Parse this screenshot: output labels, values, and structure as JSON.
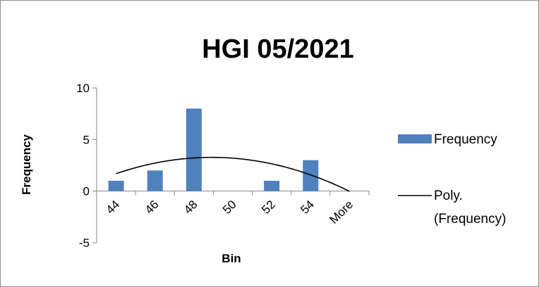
{
  "chart_data": {
    "type": "bar",
    "title": "HGI 05/2021",
    "xlabel": "Bin",
    "ylabel": "Frequency",
    "categories": [
      "44",
      "46",
      "48",
      "50",
      "52",
      "54",
      "More"
    ],
    "series": [
      {
        "name": "Frequency",
        "values": [
          1,
          2,
          8,
          0,
          1,
          3,
          0
        ],
        "color": "#4f81bd"
      }
    ],
    "trendline": {
      "type": "polynomial",
      "legend_lines": [
        "Poly.",
        "(Frequency)"
      ],
      "color": "#000000"
    },
    "ylim": [
      -5,
      10
    ],
    "yticks": [
      -5,
      0,
      5,
      10
    ],
    "grid": false,
    "legend": "right"
  }
}
